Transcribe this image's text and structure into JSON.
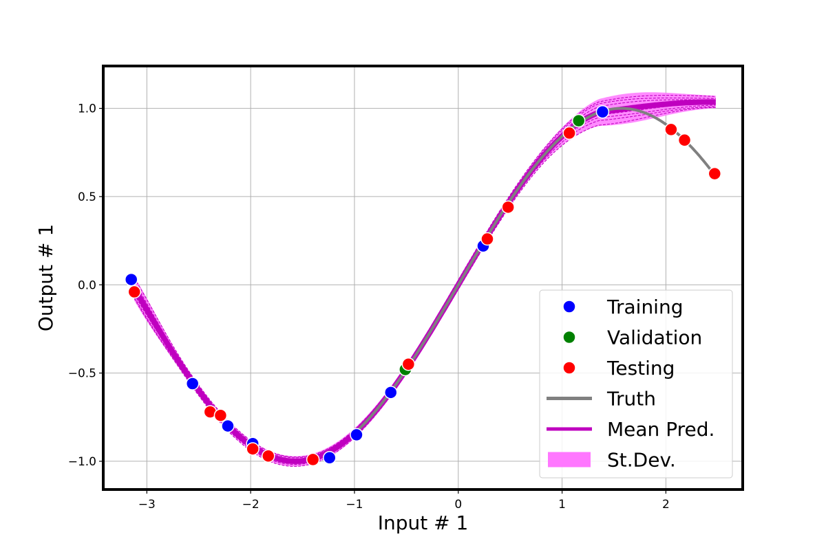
{
  "chart_data": {
    "type": "scatter",
    "xlabel": "Input # 1",
    "ylabel": "Output # 1",
    "xlim": [
      -3.42,
      2.74
    ],
    "ylim": [
      -1.16,
      1.24
    ],
    "x_ticks": [
      {
        "value": -3,
        "label": "−3"
      },
      {
        "value": -2,
        "label": "−2"
      },
      {
        "value": -1,
        "label": "−1"
      },
      {
        "value": 0,
        "label": "0"
      },
      {
        "value": 1,
        "label": "1"
      },
      {
        "value": 2,
        "label": "2"
      }
    ],
    "y_ticks": [
      {
        "value": -1.0,
        "label": "−1.0"
      },
      {
        "value": -0.5,
        "label": "−0.5"
      },
      {
        "value": 0.0,
        "label": "0.0"
      },
      {
        "value": 0.5,
        "label": "0.5"
      },
      {
        "value": 1.0,
        "label": "1.0"
      }
    ],
    "grid": true,
    "legend_position": "bottom-right",
    "colors": {
      "training": "#0000ff",
      "validation": "#008000",
      "testing": "#ff0000",
      "truth": "#808080",
      "mean_pred": "#bf00bf",
      "stdev_fill": "#ff77ff",
      "ensemble": "#bf00bf"
    },
    "truth": {
      "name": "Truth",
      "x_range": [
        -1.0,
        2.45
      ]
    },
    "mean_pred": {
      "name": "Mean Pred.",
      "x_range": [
        -3.12,
        2.48
      ]
    },
    "stdev": {
      "name": "St.Dev."
    },
    "series": [
      {
        "name": "Training",
        "points": [
          [
            -3.15,
            0.03
          ],
          [
            -2.56,
            -0.56
          ],
          [
            -2.22,
            -0.8
          ],
          [
            -1.98,
            -0.9
          ],
          [
            -1.24,
            -0.98
          ],
          [
            -0.98,
            -0.85
          ],
          [
            -0.65,
            -0.61
          ],
          [
            0.24,
            0.22
          ],
          [
            1.39,
            0.98
          ]
        ]
      },
      {
        "name": "Validation",
        "points": [
          [
            -0.51,
            -0.48
          ],
          [
            1.16,
            0.93
          ]
        ]
      },
      {
        "name": "Testing",
        "points": [
          [
            -3.12,
            -0.04
          ],
          [
            -2.39,
            -0.72
          ],
          [
            -2.29,
            -0.74
          ],
          [
            -1.98,
            -0.93
          ],
          [
            -1.83,
            -0.97
          ],
          [
            -1.4,
            -0.99
          ],
          [
            -0.48,
            -0.45
          ],
          [
            0.28,
            0.26
          ],
          [
            0.48,
            0.44
          ],
          [
            1.07,
            0.86
          ],
          [
            2.05,
            0.88
          ],
          [
            2.18,
            0.82
          ],
          [
            2.47,
            0.63
          ]
        ]
      }
    ],
    "legend": [
      {
        "label": "Training",
        "kind": "marker",
        "color": "#0000ff"
      },
      {
        "label": "Validation",
        "kind": "marker",
        "color": "#008000"
      },
      {
        "label": "Testing",
        "kind": "marker",
        "color": "#ff0000"
      },
      {
        "label": "Truth",
        "kind": "line",
        "color": "#808080"
      },
      {
        "label": "Mean Pred.",
        "kind": "line",
        "color": "#bf00bf"
      },
      {
        "label": "St.Dev.",
        "kind": "patch",
        "color": "#ff77ff"
      }
    ]
  }
}
